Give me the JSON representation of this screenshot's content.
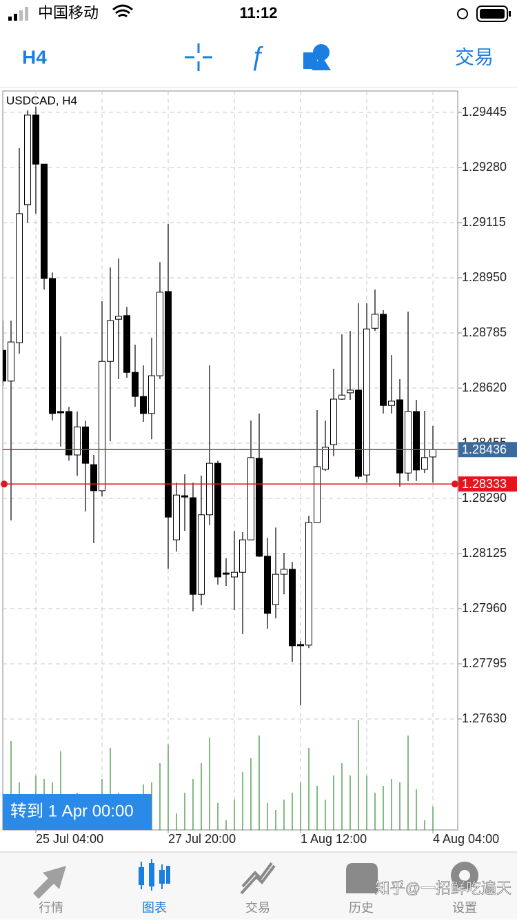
{
  "status_bar": {
    "carrier": "中国移动",
    "time": "11:12"
  },
  "toolbar": {
    "timeframe": "H4",
    "trade": "交易"
  },
  "chart_data": {
    "type": "candlestick",
    "title": "USDCAD, H4",
    "categories": [
      null,
      null,
      null,
      null,
      "25 Jul 04:00",
      null,
      null,
      null,
      null,
      null,
      null,
      null,
      null,
      null,
      null,
      null,
      null,
      null,
      null,
      null,
      "27 Jul 20:00",
      null,
      null,
      null,
      null,
      null,
      null,
      null,
      null,
      null,
      null,
      null,
      null,
      null,
      null,
      null,
      "1 Aug 12:00",
      null,
      null,
      null,
      null,
      null,
      null,
      null,
      null,
      null,
      null,
      null,
      null,
      null,
      null,
      null,
      "4 Aug 04:00"
    ],
    "open": [
      1.28733,
      1.28641,
      1.28756,
      1.29169,
      1.29437,
      1.2929,
      1.28948,
      1.2855,
      1.2855,
      1.2842,
      1.28504,
      1.28391,
      1.28313,
      1.287,
      1.28826,
      1.28837,
      1.28667,
      1.28595,
      1.28544,
      1.28657,
      1.28909,
      1.28166,
      1.28298,
      1.28292,
      1.28003,
      1.28241,
      1.28395,
      1.28067,
      1.28055,
      1.28069,
      1.28166,
      1.2841,
      1.28117,
      1.27972,
      1.28063,
      1.28078,
      1.27853,
      1.27851,
      1.28218,
      1.28377,
      1.28451,
      1.28587,
      1.28606,
      1.28614,
      1.2836,
      1.28799,
      1.28841,
      1.28568,
      1.28585,
      1.28366,
      1.2855,
      1.28377,
      1.28414
    ],
    "high": [
      1.28822,
      1.28822,
      1.29338,
      1.29451,
      1.29462,
      1.2929,
      1.28966,
      1.28775,
      1.28564,
      1.2855,
      1.28523,
      1.2842,
      1.2888,
      1.28981,
      1.29008,
      1.28863,
      1.2875,
      1.28688,
      1.28771,
      1.28997,
      1.29111,
      1.28337,
      1.28362,
      1.28337,
      1.28358,
      1.28688,
      1.28403,
      1.28111,
      1.28193,
      1.28189,
      1.28523,
      1.28544,
      1.28172,
      1.28203,
      1.28127,
      1.281,
      1.27863,
      1.28238,
      1.28554,
      1.28523,
      1.28678,
      1.28781,
      1.28791,
      1.28874,
      1.28874,
      1.28915,
      1.28853,
      1.28719,
      1.28647,
      1.28849,
      1.28585,
      1.28552,
      1.28507
    ],
    "low": [
      1.28626,
      1.28224,
      1.28723,
      1.29115,
      1.29142,
      1.28915,
      1.28523,
      1.28445,
      1.28403,
      1.28358,
      1.28251,
      1.28156,
      1.28296,
      1.28461,
      1.28647,
      1.28651,
      1.28564,
      1.28519,
      1.28467,
      1.28647,
      1.2808,
      1.28131,
      1.28193,
      1.27952,
      1.2797,
      1.2821,
      1.28032,
      1.28028,
      1.27956,
      1.27884,
      1.28166,
      1.28115,
      1.279,
      1.27931,
      1.28003,
      1.27801,
      1.27671,
      1.27842,
      1.28218,
      1.28372,
      1.28416,
      1.28585,
      1.28585,
      1.28348,
      1.28337,
      1.28791,
      1.28544,
      1.28544,
      1.28325,
      1.28342,
      1.28342,
      1.28366,
      1.28337
    ],
    "close": [
      1.28641,
      1.28758,
      1.29142,
      1.29437,
      1.2929,
      1.28948,
      1.28544,
      1.28546,
      1.2842,
      1.28504,
      1.28395,
      1.28313,
      1.287,
      1.28822,
      1.28835,
      1.28667,
      1.28595,
      1.28544,
      1.28657,
      1.28907,
      1.28234,
      1.283,
      1.28294,
      1.28003,
      1.28241,
      1.28395,
      1.28055,
      1.28063,
      1.28069,
      1.28166,
      1.28412,
      1.28117,
      1.27946,
      1.28063,
      1.28078,
      1.27849,
      1.27849,
      1.28218,
      1.28385,
      1.28443,
      1.28587,
      1.28599,
      1.28614,
      1.28356,
      1.28797,
      1.28841,
      1.28568,
      1.28581,
      1.28366,
      1.2855,
      1.28375,
      1.28412,
      1.28436
    ],
    "volume": [
      540,
      1290,
      690,
      440,
      790,
      740,
      690,
      1140,
      440,
      540,
      340,
      390,
      740,
      1190,
      540,
      340,
      240,
      660,
      690,
      970,
      1240,
      240,
      540,
      740,
      970,
      1340,
      390,
      140,
      440,
      840,
      1040,
      1370,
      390,
      290,
      440,
      540,
      690,
      1190,
      640,
      440,
      790,
      970,
      790,
      1590,
      790,
      540,
      640,
      740,
      690,
      1370,
      590,
      140,
      340
    ],
    "ylim": [
      1.27298,
      1.29509
    ],
    "yticks": [
      1.29445,
      {
        "value": 1.2928,
        "label": "1.29280"
      },
      1.29115,
      {
        "value": 1.2895,
        "label": "1.28950"
      },
      1.28785,
      {
        "value": 1.2862,
        "label": "1.28620"
      },
      1.28455,
      {
        "value": 1.2829,
        "label": "1.28290"
      },
      1.28125,
      {
        "value": 1.2796,
        "label": "1.27960"
      },
      1.27795,
      {
        "value": 1.2763,
        "label": "1.27630"
      }
    ],
    "price_lines": [
      {
        "value": 1.28436,
        "color": "#3c6a9a",
        "line_color": "#7a4a4a"
      },
      {
        "value": 1.28333,
        "color": "#e3161f",
        "line_color": "#e3161f",
        "end_dots": true
      }
    ],
    "up_color": "#ffffff",
    "down_color": "#000000",
    "volume_color": "#2e8b2e",
    "grid": true
  },
  "goto_button": "转到 1 Apr 00:00",
  "tabs": [
    "行情",
    "图表",
    "交易",
    "历史",
    "设置"
  ],
  "watermark": "知乎@一招鲜吃遍天"
}
